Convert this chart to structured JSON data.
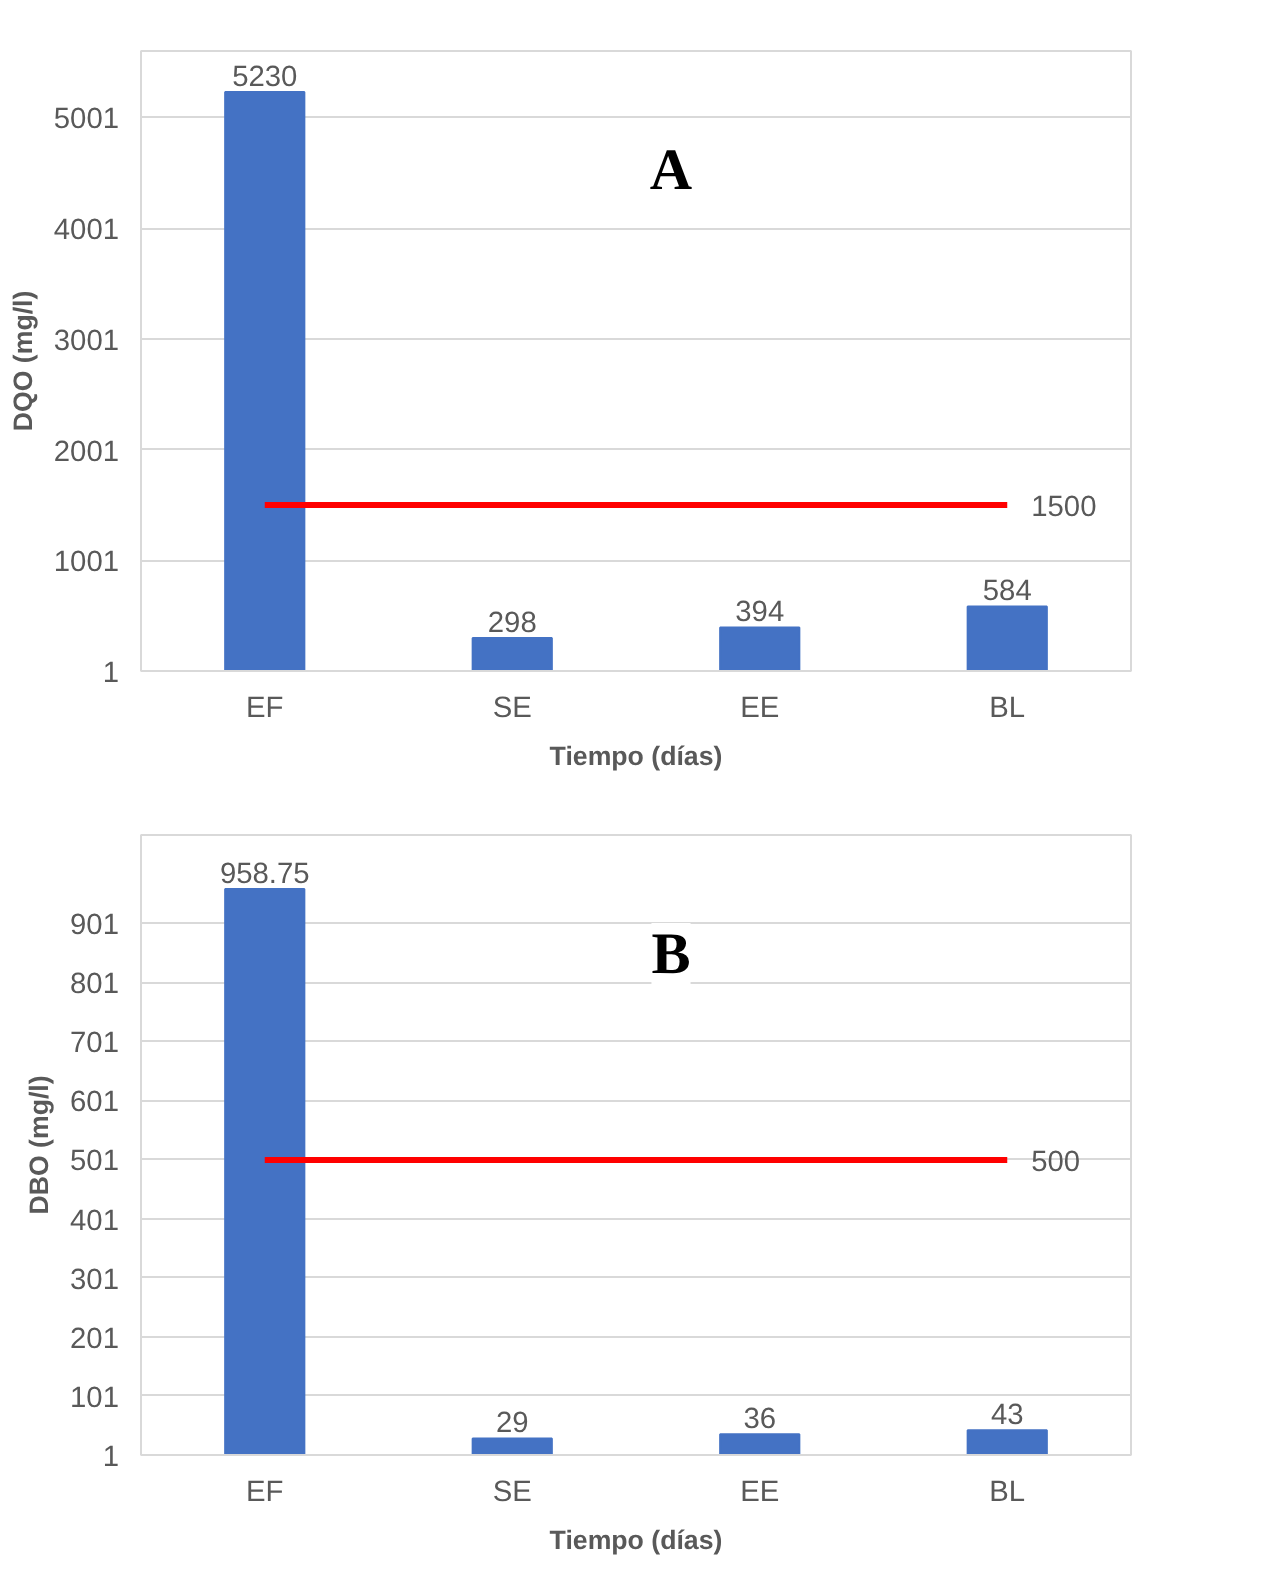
{
  "chart_data": [
    {
      "type": "bar",
      "categories": [
        "EF",
        "SE",
        "EE",
        "BL"
      ],
      "values": [
        5230,
        298,
        394,
        584
      ],
      "color": "#4472c4",
      "xlabel": "Tiempo (días)",
      "ylabel": "DQO (mg/l)",
      "ylim": [
        1,
        5600
      ],
      "yticks": [
        1,
        1001,
        2001,
        3001,
        4001,
        5001
      ],
      "grid": "y",
      "data_labels": true,
      "annotations": [
        "A"
      ],
      "ref_lines": [
        {
          "axis": "y",
          "value": 1500,
          "label": "1500",
          "color": "#ff0000"
        }
      ]
    },
    {
      "type": "bar",
      "categories": [
        "EF",
        "SE",
        "EE",
        "BL"
      ],
      "values": [
        958.75,
        29,
        36,
        43
      ],
      "color": "#4472c4",
      "xlabel": "Tiempo (días)",
      "ylabel": "DBO (mg/l)",
      "ylim": [
        1,
        1050
      ],
      "yticks": [
        1,
        101,
        201,
        301,
        401,
        501,
        601,
        701,
        801,
        901
      ],
      "grid": "y",
      "data_labels": true,
      "annotations": [
        "B"
      ],
      "ref_lines": [
        {
          "axis": "y",
          "value": 500,
          "label": "500",
          "color": "#ff0000"
        }
      ]
    }
  ]
}
